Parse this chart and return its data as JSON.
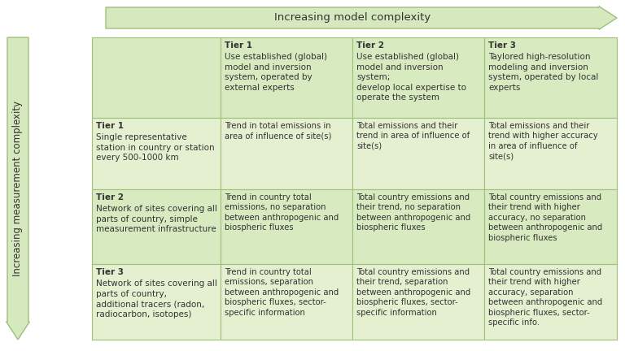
{
  "title_top": "Increasing model complexity",
  "title_left": "Increasing measurement complexity",
  "bg_color": "#ffffff",
  "arrow_fill": "#d6e8be",
  "arrow_edge": "#9ec07a",
  "border_color": "#9ec07a",
  "text_color": "#333333",
  "row_colors": [
    "#d8eabf",
    "#e4f0d0",
    "#d8eabf",
    "#e4f0d0"
  ],
  "header_row": [
    "",
    "Tier 1\nUse established (global)\nmodel and inversion\nsystem, operated by\nexternal experts",
    "Tier 2\nUse established (global)\nmodel and inversion\nsystem;\ndevelop local expertise to\noperate the system",
    "Tier 3\nTaylored high-resolution\nmodeling and inversion\nsystem, operated by local\nexperts"
  ],
  "row1_label": "Tier 1\nSingle representative\nstation in country or station\nevery 500-1000 km",
  "row1_cells": [
    "Trend in total emissions in\narea of influence of site(s)",
    "Total emissions and their\ntrend in area of influence of\nsite(s)",
    "Total emissions and their\ntrend with higher accuracy\nin area of influence of\nsite(s)"
  ],
  "row2_label": "Tier 2\nNetwork of sites covering all\nparts of country, simple\nmeasurement infrastructure",
  "row2_cells": [
    "Trend in country total\nemissions, no separation\nbetween anthropogenic and\nbiospheric fluxes",
    "Total country emissions and\ntheir trend, no separation\nbetween anthropogenic and\nbiospheric fluxes",
    "Total country emissions and\ntheir trend with higher\naccuracy, no separation\nbetween anthropogenic and\nbiospheric fluxes"
  ],
  "row3_label": "Tier 3\nNetwork of sites covering all\nparts of country,\nadditional tracers (radon,\nradiocarbon, isotopes)",
  "row3_cells": [
    "Trend in country total\nemissions, separation\nbetween anthropogenic and\nbiospheric fluxes, sector-\nspecific information",
    "Total country emissions and\ntheir trend, separation\nbetween anthropogenic and\nbiospheric fluxes, sector-\nspecific information",
    "Total country emissions and\ntheir trend with higher\naccuracy, separation\nbetween anthropogenic and\nbiospheric fluxes, sector-\nspecific info."
  ]
}
